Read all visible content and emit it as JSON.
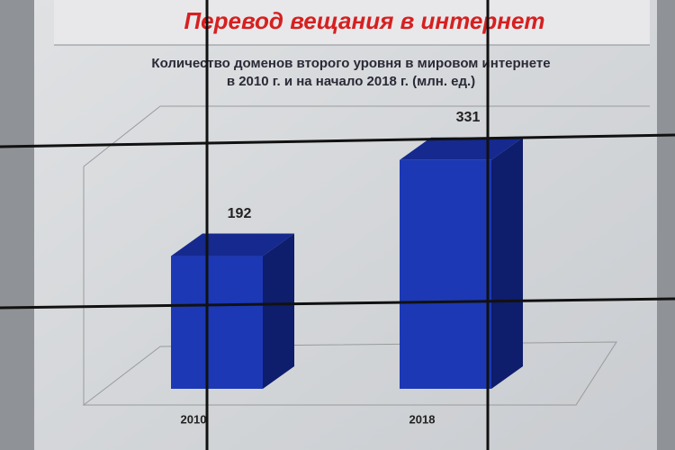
{
  "chart_data": {
    "type": "bar3d",
    "title": "Перевод вещания в интернет",
    "subtitle": [
      "Количество доменов второго уровня в мировом интернете",
      "в 2010 г. и на начало 2018 г. (млн. ед.)"
    ],
    "categories": [
      "2010",
      "2018"
    ],
    "values": [
      192,
      331
    ],
    "color": "#1c38b4"
  }
}
